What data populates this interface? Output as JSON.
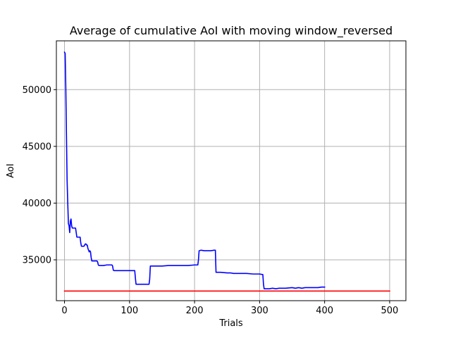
{
  "chart_data": {
    "type": "line",
    "title": "Average of cumulative AoI with moving window_reversed",
    "xlabel": "Trials",
    "ylabel": "AoI",
    "xlim": [
      -12.5,
      525
    ],
    "ylim": [
      31400,
      54300
    ],
    "xticks": [
      0,
      100,
      200,
      300,
      400,
      500
    ],
    "yticks": [
      35000,
      40000,
      45000,
      50000
    ],
    "grid": true,
    "series": [
      {
        "color": "#0000ff",
        "x": [
          0,
          1,
          2,
          3,
          4,
          5,
          6,
          7,
          8,
          9,
          10,
          11,
          12,
          13,
          14,
          15,
          17,
          18,
          19,
          20,
          21,
          22,
          24,
          25,
          26,
          27,
          28,
          30,
          31,
          32,
          33,
          34,
          35,
          36,
          38,
          39,
          40,
          41,
          42,
          43,
          46,
          47,
          48,
          50,
          51,
          52,
          53,
          60,
          65,
          70,
          73,
          74,
          75,
          76,
          80,
          90,
          100,
          108,
          109,
          110,
          120,
          130,
          131,
          132,
          140,
          150,
          160,
          170,
          180,
          190,
          200,
          205,
          206,
          207,
          210,
          215,
          220,
          225,
          230,
          232,
          233,
          240,
          250,
          255,
          260,
          270,
          280,
          290,
          300,
          305,
          306,
          307,
          310,
          315,
          320,
          325,
          330,
          340,
          350,
          355,
          360,
          365,
          370,
          380,
          390,
          395,
          400
        ],
        "y": [
          53300,
          53200,
          50200,
          46000,
          42000,
          40000,
          38200,
          38000,
          37400,
          38400,
          38600,
          38000,
          37800,
          37800,
          37800,
          37800,
          37800,
          37400,
          37000,
          37000,
          37000,
          37000,
          37000,
          36500,
          36200,
          36200,
          36200,
          36200,
          36300,
          36400,
          36400,
          36300,
          36300,
          36000,
          35700,
          35800,
          35700,
          35200,
          34900,
          34900,
          34900,
          34900,
          34900,
          34900,
          34800,
          34550,
          34500,
          34500,
          34550,
          34550,
          34550,
          34450,
          34100,
          34050,
          34050,
          34050,
          34050,
          34050,
          33400,
          32850,
          32850,
          32850,
          33300,
          34450,
          34450,
          34450,
          34500,
          34500,
          34500,
          34500,
          34550,
          34550,
          35000,
          35800,
          35850,
          35800,
          35800,
          35800,
          35850,
          35850,
          33900,
          33900,
          33850,
          33850,
          33800,
          33800,
          33800,
          33750,
          33750,
          33700,
          32850,
          32450,
          32450,
          32450,
          32500,
          32450,
          32500,
          32500,
          32550,
          32500,
          32550,
          32500,
          32550,
          32550,
          32550,
          32600,
          32600
        ]
      },
      {
        "color": "#ff0000",
        "x": [
          0,
          500
        ],
        "y": [
          32250,
          32250
        ]
      }
    ]
  }
}
